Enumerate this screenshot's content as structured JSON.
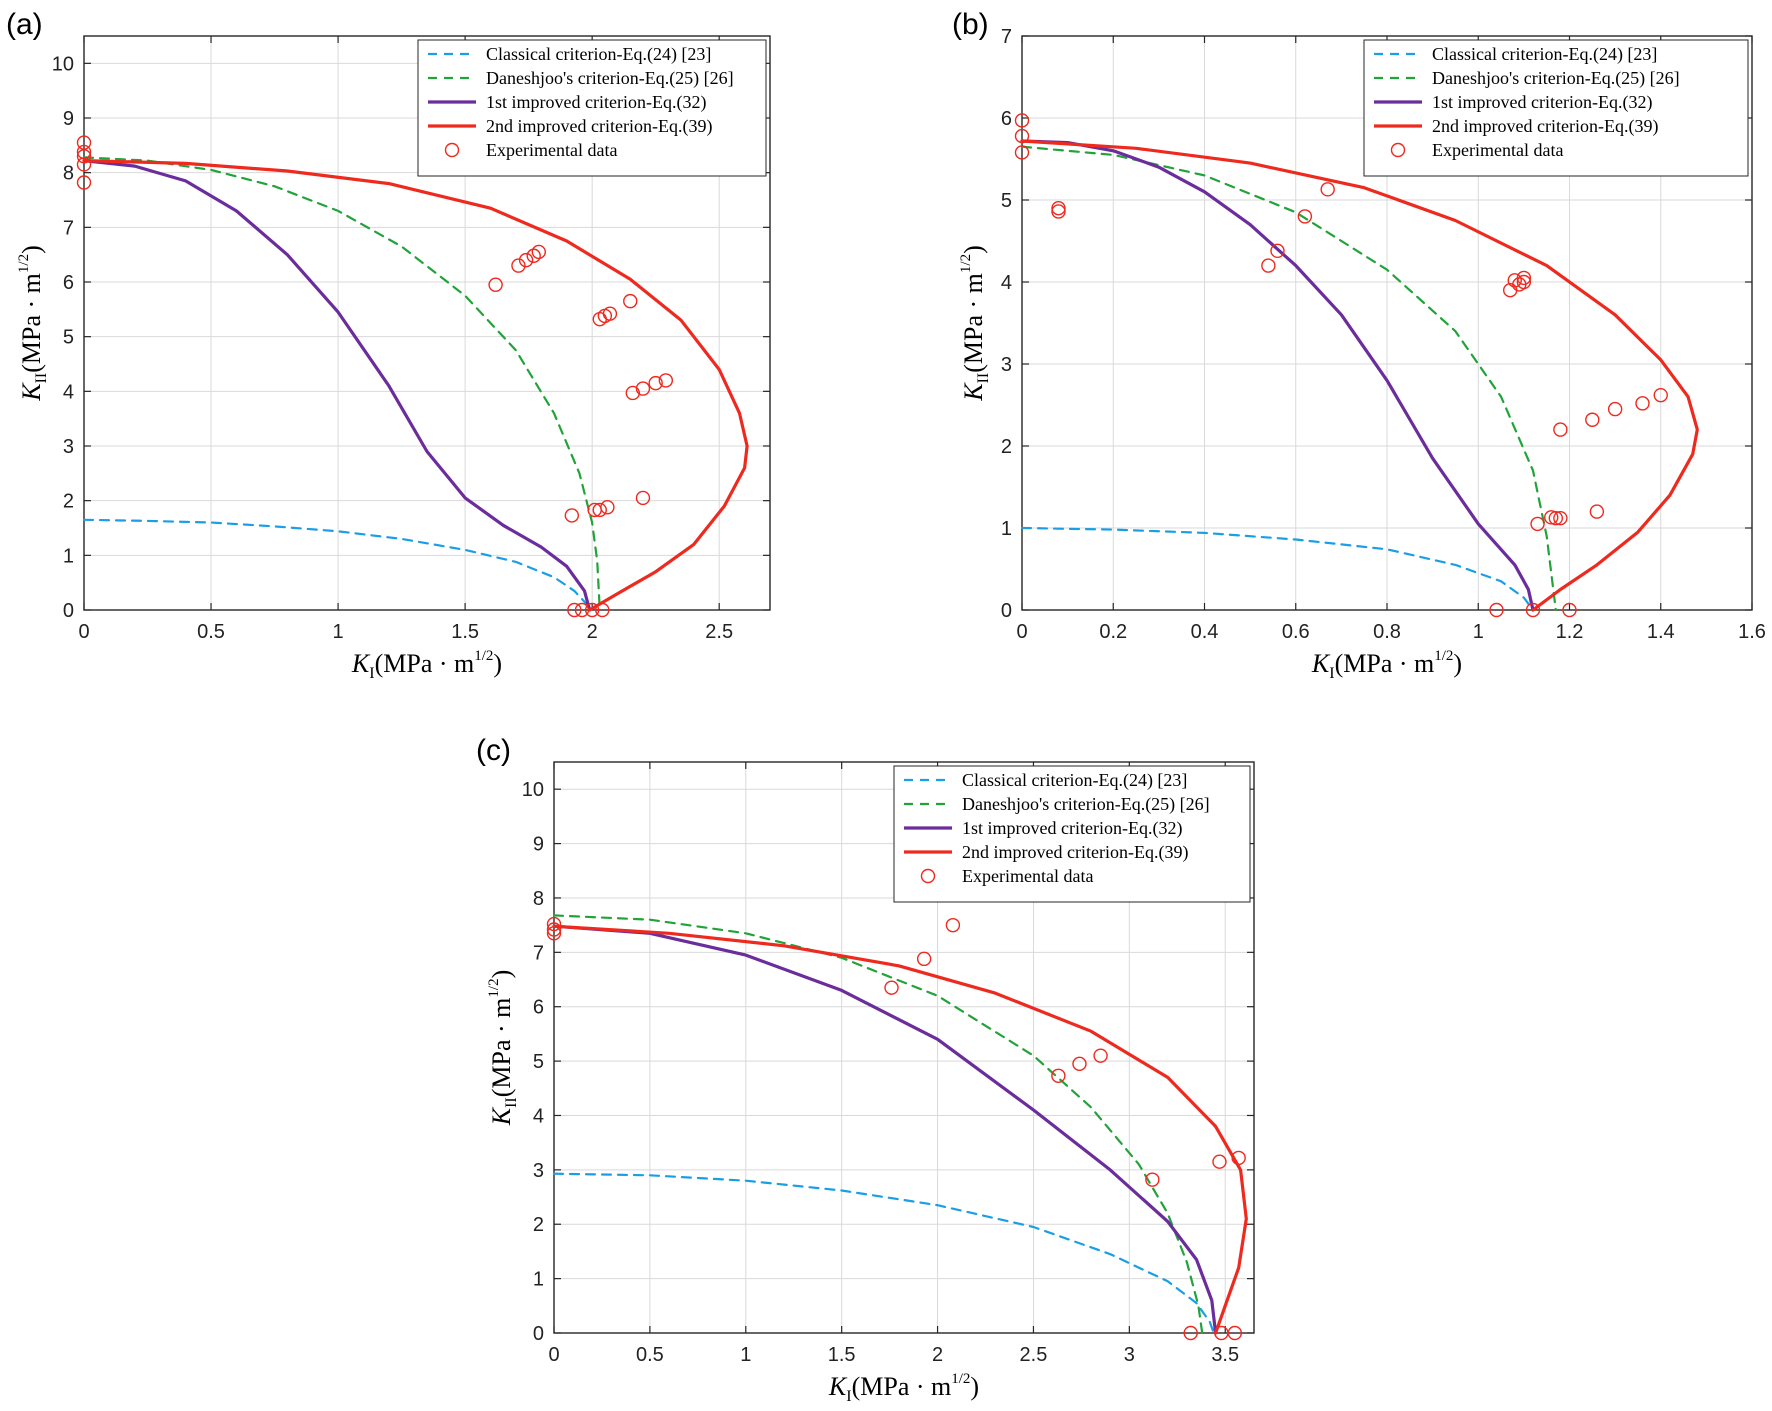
{
  "figure": {
    "colors": {
      "classical": "#1a9ee6",
      "daneshjoo": "#22a33a",
      "improved1": "#6b2c9c",
      "improved2": "#ee2a1f",
      "experimental": "#f0281e",
      "grid": "#d9d9d9",
      "axes": "#262626"
    }
  },
  "chart_data": [
    {
      "panel": "(a)",
      "type": "line",
      "xlabel": "K_I(MPa · m^(1/2))",
      "ylabel": "K_II(MPa · m^(1/2))",
      "xlim": [
        0,
        2.7
      ],
      "ylim": [
        0,
        10.5
      ],
      "xticks": [
        0,
        0.5,
        1,
        1.5,
        2,
        2.5
      ],
      "xtick_labels": [
        "0",
        "0.5",
        "1",
        "1.5",
        "2",
        "2.5"
      ],
      "yticks": [
        0,
        1,
        2,
        3,
        4,
        5,
        6,
        7,
        8,
        9,
        10
      ],
      "ytick_labels": [
        "0",
        "1",
        "2",
        "3",
        "4",
        "5",
        "6",
        "7",
        "8",
        "9",
        "10"
      ],
      "grid": true,
      "legend_position": "top-right",
      "series": [
        {
          "name": "Classical criterion-Eq.(24) [23]",
          "style": "dashed",
          "color_key": "classical",
          "points": [
            [
              0,
              1.65
            ],
            [
              0.25,
              1.63
            ],
            [
              0.5,
              1.6
            ],
            [
              0.75,
              1.53
            ],
            [
              1.0,
              1.44
            ],
            [
              1.25,
              1.3
            ],
            [
              1.5,
              1.1
            ],
            [
              1.7,
              0.88
            ],
            [
              1.85,
              0.6
            ],
            [
              1.93,
              0.35
            ],
            [
              1.97,
              0.15
            ],
            [
              1.99,
              0
            ]
          ]
        },
        {
          "name": "Daneshjoo's criterion-Eq.(25) [26]",
          "style": "dashed",
          "color_key": "daneshjoo",
          "points": [
            [
              0,
              8.28
            ],
            [
              0.25,
              8.22
            ],
            [
              0.5,
              8.05
            ],
            [
              0.75,
              7.75
            ],
            [
              1.0,
              7.3
            ],
            [
              1.25,
              6.65
            ],
            [
              1.5,
              5.75
            ],
            [
              1.7,
              4.75
            ],
            [
              1.85,
              3.6
            ],
            [
              1.95,
              2.5
            ],
            [
              2.0,
              1.6
            ],
            [
              2.02,
              0.9
            ],
            [
              2.03,
              0
            ]
          ]
        },
        {
          "name": "1st improved criterion-Eq.(32)",
          "style": "solid",
          "color_key": "improved1",
          "points": [
            [
              0,
              8.22
            ],
            [
              0.2,
              8.12
            ],
            [
              0.4,
              7.85
            ],
            [
              0.6,
              7.3
            ],
            [
              0.8,
              6.5
            ],
            [
              1.0,
              5.45
            ],
            [
              1.2,
              4.1
            ],
            [
              1.35,
              2.9
            ],
            [
              1.5,
              2.05
            ],
            [
              1.65,
              1.55
            ],
            [
              1.8,
              1.15
            ],
            [
              1.9,
              0.8
            ],
            [
              1.97,
              0.35
            ],
            [
              1.99,
              0
            ]
          ]
        },
        {
          "name": "2nd improved criterion-Eq.(39)",
          "style": "solid",
          "color_key": "improved2",
          "points": [
            [
              1.99,
              0
            ],
            [
              2.1,
              0.3
            ],
            [
              2.25,
              0.7
            ],
            [
              2.4,
              1.2
            ],
            [
              2.52,
              1.9
            ],
            [
              2.6,
              2.6
            ],
            [
              2.61,
              3.0
            ],
            [
              2.58,
              3.6
            ],
            [
              2.5,
              4.4
            ],
            [
              2.35,
              5.3
            ],
            [
              2.15,
              6.05
            ],
            [
              1.9,
              6.75
            ],
            [
              1.6,
              7.35
            ],
            [
              1.2,
              7.8
            ],
            [
              0.8,
              8.03
            ],
            [
              0.4,
              8.17
            ],
            [
              0,
              8.22
            ]
          ]
        }
      ],
      "experimental": {
        "name": "Experimental data",
        "points": [
          [
            0,
            8.55
          ],
          [
            0,
            8.38
          ],
          [
            0,
            8.3
          ],
          [
            0,
            8.15
          ],
          [
            0,
            7.82
          ],
          [
            1.62,
            5.95
          ],
          [
            1.71,
            6.3
          ],
          [
            1.74,
            6.4
          ],
          [
            1.77,
            6.48
          ],
          [
            1.79,
            6.55
          ],
          [
            2.03,
            5.32
          ],
          [
            2.05,
            5.38
          ],
          [
            2.07,
            5.42
          ],
          [
            2.15,
            5.65
          ],
          [
            2.16,
            3.97
          ],
          [
            2.2,
            4.05
          ],
          [
            2.25,
            4.15
          ],
          [
            2.29,
            4.2
          ],
          [
            2.2,
            2.05
          ],
          [
            1.92,
            1.73
          ],
          [
            2.01,
            1.83
          ],
          [
            2.03,
            1.83
          ],
          [
            2.06,
            1.88
          ],
          [
            1.93,
            0
          ],
          [
            1.96,
            0
          ],
          [
            2.0,
            0
          ],
          [
            2.04,
            0
          ]
        ]
      }
    },
    {
      "panel": "(b)",
      "type": "line",
      "xlabel": "K_I(MPa · m^(1/2))",
      "ylabel": "K_II(MPa · m^(1/2))",
      "xlim": [
        0,
        1.6
      ],
      "ylim": [
        0,
        7
      ],
      "xticks": [
        0,
        0.2,
        0.4,
        0.6,
        0.8,
        1,
        1.2,
        1.4,
        1.6
      ],
      "xtick_labels": [
        "0",
        "0.2",
        "0.4",
        "0.6",
        "0.8",
        "1",
        "1.2",
        "1.4",
        "1.6"
      ],
      "yticks": [
        0,
        1,
        2,
        3,
        4,
        5,
        6,
        7
      ],
      "ytick_labels": [
        "0",
        "1",
        "2",
        "3",
        "4",
        "5",
        "6",
        "7"
      ],
      "grid": true,
      "legend_position": "top-right",
      "series": [
        {
          "name": "Classical criterion-Eq.(24) [23]",
          "style": "dashed",
          "color_key": "classical",
          "points": [
            [
              0,
              1.0
            ],
            [
              0.2,
              0.98
            ],
            [
              0.4,
              0.94
            ],
            [
              0.6,
              0.86
            ],
            [
              0.8,
              0.74
            ],
            [
              0.95,
              0.55
            ],
            [
              1.05,
              0.35
            ],
            [
              1.1,
              0.15
            ],
            [
              1.12,
              0
            ]
          ]
        },
        {
          "name": "Daneshjoo's criterion-Eq.(25) [26]",
          "style": "dashed",
          "color_key": "daneshjoo",
          "points": [
            [
              0,
              5.65
            ],
            [
              0.2,
              5.55
            ],
            [
              0.4,
              5.3
            ],
            [
              0.6,
              4.85
            ],
            [
              0.8,
              4.15
            ],
            [
              0.95,
              3.4
            ],
            [
              1.05,
              2.6
            ],
            [
              1.12,
              1.7
            ],
            [
              1.15,
              0.9
            ],
            [
              1.17,
              0
            ]
          ]
        },
        {
          "name": "1st improved criterion-Eq.(32)",
          "style": "solid",
          "color_key": "improved1",
          "points": [
            [
              0,
              5.72
            ],
            [
              0.1,
              5.7
            ],
            [
              0.2,
              5.6
            ],
            [
              0.3,
              5.4
            ],
            [
              0.4,
              5.1
            ],
            [
              0.5,
              4.7
            ],
            [
              0.6,
              4.2
            ],
            [
              0.7,
              3.6
            ],
            [
              0.8,
              2.8
            ],
            [
              0.9,
              1.85
            ],
            [
              1.0,
              1.05
            ],
            [
              1.08,
              0.55
            ],
            [
              1.11,
              0.25
            ],
            [
              1.12,
              0
            ]
          ]
        },
        {
          "name": "2nd improved criterion-Eq.(39)",
          "style": "solid",
          "color_key": "improved2",
          "points": [
            [
              1.12,
              0
            ],
            [
              1.18,
              0.25
            ],
            [
              1.26,
              0.55
            ],
            [
              1.35,
              0.95
            ],
            [
              1.42,
              1.4
            ],
            [
              1.47,
              1.9
            ],
            [
              1.48,
              2.2
            ],
            [
              1.46,
              2.6
            ],
            [
              1.4,
              3.05
            ],
            [
              1.3,
              3.6
            ],
            [
              1.15,
              4.2
            ],
            [
              0.95,
              4.75
            ],
            [
              0.75,
              5.15
            ],
            [
              0.5,
              5.45
            ],
            [
              0.25,
              5.63
            ],
            [
              0,
              5.72
            ]
          ]
        }
      ],
      "experimental": {
        "name": "Experimental data",
        "points": [
          [
            0,
            5.97
          ],
          [
            0,
            5.78
          ],
          [
            0,
            5.58
          ],
          [
            0.08,
            4.9
          ],
          [
            0.08,
            4.86
          ],
          [
            0.54,
            4.2
          ],
          [
            0.56,
            4.38
          ],
          [
            0.62,
            4.8
          ],
          [
            0.67,
            5.13
          ],
          [
            1.07,
            3.9
          ],
          [
            1.08,
            4.02
          ],
          [
            1.09,
            3.97
          ],
          [
            1.1,
            4.0
          ],
          [
            1.1,
            4.05
          ],
          [
            1.13,
            1.05
          ],
          [
            1.16,
            1.13
          ],
          [
            1.17,
            1.12
          ],
          [
            1.18,
            1.12
          ],
          [
            1.18,
            2.2
          ],
          [
            1.25,
            2.32
          ],
          [
            1.3,
            2.45
          ],
          [
            1.36,
            2.52
          ],
          [
            1.4,
            2.62
          ],
          [
            1.26,
            1.2
          ],
          [
            1.04,
            0
          ],
          [
            1.12,
            0
          ],
          [
            1.2,
            0
          ]
        ]
      }
    },
    {
      "panel": "(c)",
      "type": "line",
      "xlabel": "K_I(MPa · m^(1/2))",
      "ylabel": "K_II(MPa · m^(1/2))",
      "xlim": [
        0,
        3.65
      ],
      "ylim": [
        0,
        10.5
      ],
      "xticks": [
        0,
        0.5,
        1,
        1.5,
        2,
        2.5,
        3,
        3.5
      ],
      "xtick_labels": [
        "0",
        "0.5",
        "1",
        "1.5",
        "2",
        "2.5",
        "3",
        "3.5"
      ],
      "yticks": [
        0,
        1,
        2,
        3,
        4,
        5,
        6,
        7,
        8,
        9,
        10
      ],
      "ytick_labels": [
        "0",
        "1",
        "2",
        "3",
        "4",
        "5",
        "6",
        "7",
        "8",
        "9",
        "10"
      ],
      "grid": true,
      "legend_position": "top-right",
      "series": [
        {
          "name": "Classical criterion-Eq.(24) [23]",
          "style": "dashed",
          "color_key": "classical",
          "points": [
            [
              0,
              2.93
            ],
            [
              0.5,
              2.9
            ],
            [
              1.0,
              2.8
            ],
            [
              1.5,
              2.62
            ],
            [
              2.0,
              2.35
            ],
            [
              2.5,
              1.95
            ],
            [
              2.9,
              1.45
            ],
            [
              3.2,
              0.95
            ],
            [
              3.35,
              0.55
            ],
            [
              3.42,
              0.2
            ],
            [
              3.44,
              0
            ]
          ]
        },
        {
          "name": "Daneshjoo's criterion-Eq.(25) [26]",
          "style": "dashed",
          "color_key": "daneshjoo",
          "points": [
            [
              0,
              7.68
            ],
            [
              0.5,
              7.6
            ],
            [
              1.0,
              7.35
            ],
            [
              1.5,
              6.9
            ],
            [
              2.0,
              6.2
            ],
            [
              2.5,
              5.1
            ],
            [
              2.8,
              4.15
            ],
            [
              3.05,
              3.1
            ],
            [
              3.2,
              2.2
            ],
            [
              3.3,
              1.3
            ],
            [
              3.36,
              0.5
            ],
            [
              3.38,
              0
            ]
          ]
        },
        {
          "name": "1st improved criterion-Eq.(32)",
          "style": "solid",
          "color_key": "improved1",
          "points": [
            [
              0,
              7.48
            ],
            [
              0.5,
              7.35
            ],
            [
              1.0,
              6.95
            ],
            [
              1.5,
              6.3
            ],
            [
              2.0,
              5.4
            ],
            [
              2.5,
              4.1
            ],
            [
              2.9,
              3.0
            ],
            [
              3.2,
              2.05
            ],
            [
              3.35,
              1.35
            ],
            [
              3.43,
              0.6
            ],
            [
              3.45,
              0
            ]
          ]
        },
        {
          "name": "2nd improved criterion-Eq.(39)",
          "style": "solid",
          "color_key": "improved2",
          "points": [
            [
              3.45,
              0
            ],
            [
              3.5,
              0.5
            ],
            [
              3.57,
              1.2
            ],
            [
              3.61,
              2.1
            ],
            [
              3.58,
              3.0
            ],
            [
              3.45,
              3.8
            ],
            [
              3.2,
              4.7
            ],
            [
              2.8,
              5.55
            ],
            [
              2.3,
              6.25
            ],
            [
              1.8,
              6.75
            ],
            [
              1.2,
              7.12
            ],
            [
              0.6,
              7.35
            ],
            [
              0,
              7.48
            ]
          ]
        }
      ],
      "experimental": {
        "name": "Experimental data",
        "points": [
          [
            0,
            7.52
          ],
          [
            0,
            7.42
          ],
          [
            0,
            7.35
          ],
          [
            1.76,
            6.35
          ],
          [
            1.93,
            6.88
          ],
          [
            2.08,
            7.5
          ],
          [
            2.63,
            4.73
          ],
          [
            2.74,
            4.95
          ],
          [
            2.85,
            5.1
          ],
          [
            3.12,
            2.82
          ],
          [
            3.47,
            3.15
          ],
          [
            3.57,
            3.22
          ],
          [
            3.32,
            0
          ],
          [
            3.48,
            0
          ],
          [
            3.55,
            0
          ]
        ]
      }
    }
  ]
}
